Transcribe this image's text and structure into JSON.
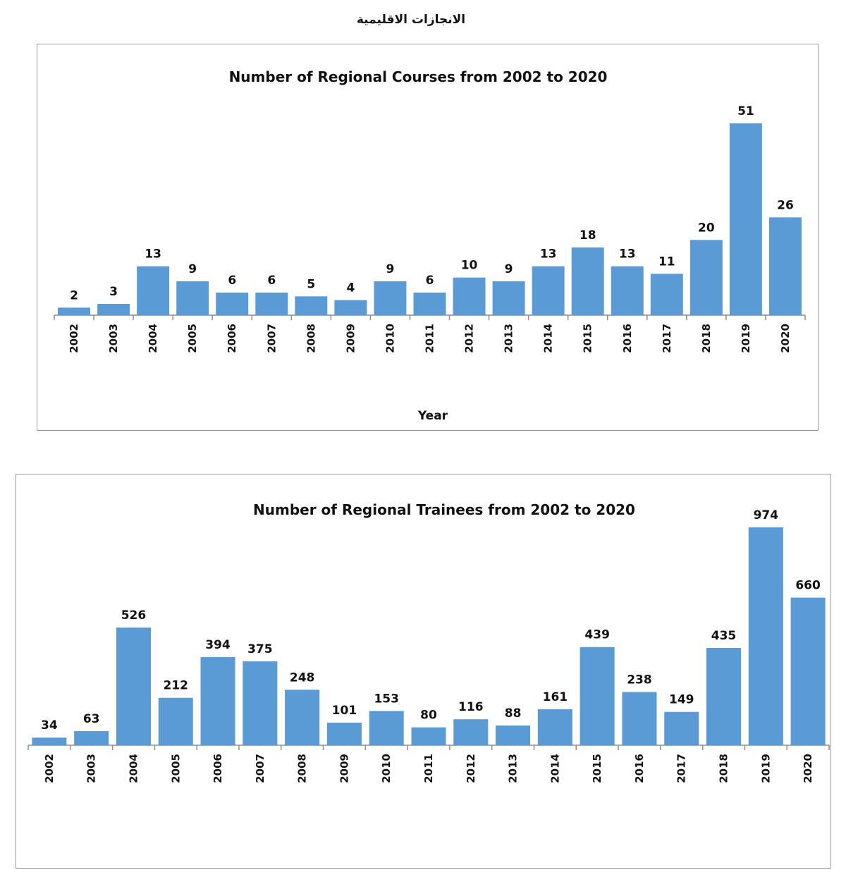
{
  "page": {
    "title": "الانجازات الاقليمية"
  },
  "chart_data": [
    {
      "type": "bar",
      "title": "Number of  Regional Courses from 2002 to 2020",
      "xlabel": "Year",
      "ylabel": "",
      "categories": [
        "2002",
        "2003",
        "2004",
        "2005",
        "2006",
        "2007",
        "2008",
        "2009",
        "2010",
        "2011",
        "2012",
        "2013",
        "2014",
        "2015",
        "2016",
        "2017",
        "2018",
        "2019",
        "2020"
      ],
      "values": [
        2,
        3,
        13,
        9,
        6,
        6,
        5,
        4,
        9,
        6,
        10,
        9,
        13,
        18,
        13,
        11,
        20,
        51,
        26
      ],
      "ylim": [
        0,
        51
      ],
      "grid": false,
      "legend": "none",
      "bar_color": "#5b9bd5"
    },
    {
      "type": "bar",
      "title": "Number of Regional Trainees from 2002 to 2020",
      "xlabel": "",
      "ylabel": "",
      "categories": [
        "2002",
        "2003",
        "2004",
        "2005",
        "2006",
        "2007",
        "2008",
        "2009",
        "2010",
        "2011",
        "2012",
        "2013",
        "2014",
        "2015",
        "2016",
        "2017",
        "2018",
        "2019",
        "2020"
      ],
      "values": [
        34,
        63,
        526,
        212,
        394,
        375,
        248,
        101,
        153,
        80,
        116,
        88,
        161,
        439,
        238,
        149,
        435,
        974,
        660
      ],
      "ylim": [
        0,
        974
      ],
      "grid": false,
      "legend": "none",
      "bar_color": "#5b9bd5"
    }
  ]
}
